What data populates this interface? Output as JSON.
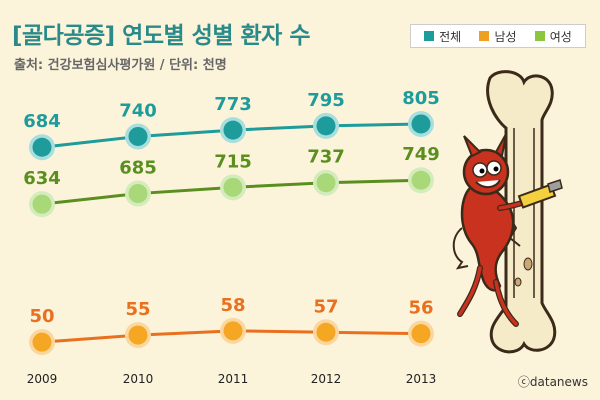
{
  "header": {
    "title": "[골다공증] 연도별 성별 환자 수",
    "subtitle": "출처: 건강보험심사평가원 / 단위: 천명"
  },
  "legend": {
    "items": [
      {
        "label": "전체",
        "color": "#1e9b9b"
      },
      {
        "label": "남성",
        "color": "#f0a020"
      },
      {
        "label": "여성",
        "color": "#8cc63f"
      }
    ]
  },
  "credit": "ⓒdatanews",
  "illustration": {
    "icon": "cartoon-devil-sawing-bone-icon"
  },
  "chart_data": {
    "type": "line",
    "x": [
      "2009",
      "2010",
      "2011",
      "2012",
      "2013"
    ],
    "series": [
      {
        "name": "전체",
        "values": [
          684,
          740,
          773,
          795,
          805
        ],
        "line_color": "#1e9b9b",
        "marker_color": "#1e9b9b",
        "marker_ring": "#a8dede",
        "label_color": "#1e9b9b"
      },
      {
        "name": "여성",
        "values": [
          634,
          685,
          715,
          737,
          749
        ],
        "line_color": "#5a8f1f",
        "marker_color": "#a9d878",
        "marker_ring": "#d4ecbc",
        "label_color": "#5a8f1f"
      },
      {
        "name": "남성",
        "values": [
          50,
          55,
          58,
          57,
          56
        ],
        "line_color": "#e8701e",
        "marker_color": "#f5a623",
        "marker_ring": "#fbd7a0",
        "label_color": "#e8701e"
      }
    ],
    "grid": false,
    "legend_position": "top-right"
  }
}
